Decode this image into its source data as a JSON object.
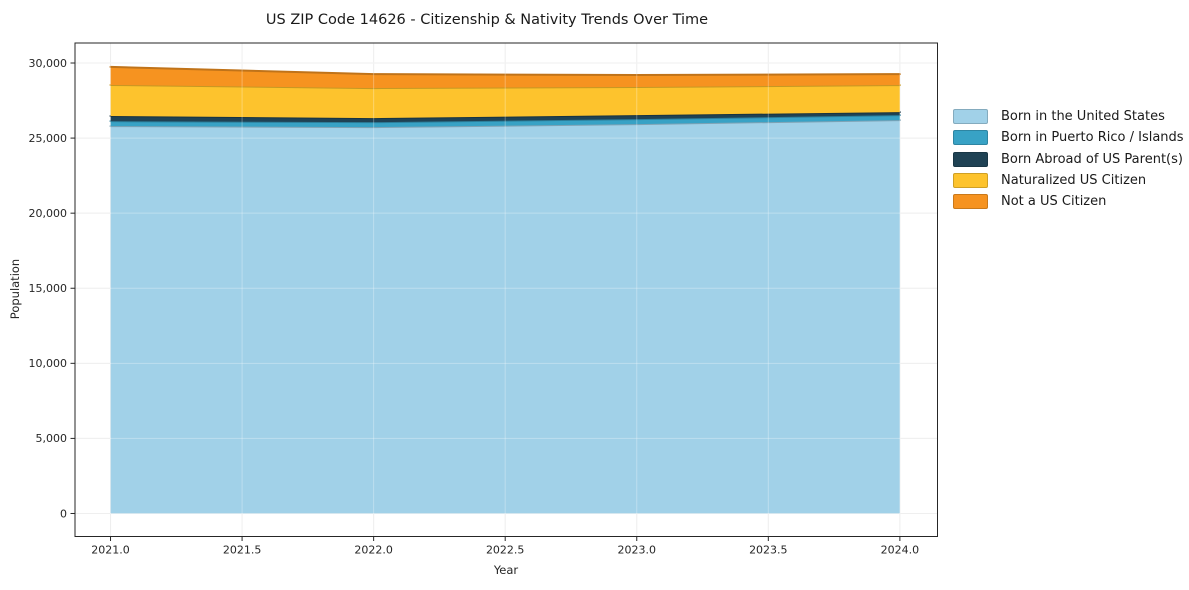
{
  "title": "US ZIP Code 14626 - Citizenship & Nativity Trends Over Time",
  "chart_data": {
    "type": "area",
    "stacked": true,
    "x": [
      2021,
      2022,
      2023,
      2024
    ],
    "series": [
      {
        "name": "Born in the United States",
        "color": "#a1d1e8",
        "values": [
          25800,
          25730,
          25930,
          26200
        ]
      },
      {
        "name": "Born in Puerto Rico / Islands",
        "color": "#38a2c5",
        "values": [
          330,
          330,
          330,
          330
        ]
      },
      {
        "name": "Born Abroad of US Parent(s)",
        "color": "#1f4254",
        "values": [
          340,
          270,
          270,
          200
        ]
      },
      {
        "name": "Naturalized US Citizen",
        "color": "#fdc32d",
        "values": [
          2070,
          2000,
          1870,
          1800
        ]
      },
      {
        "name": "Not a US Citizen",
        "color": "#f69320",
        "values": [
          1200,
          930,
          800,
          730
        ]
      }
    ],
    "totals": [
      29740,
      29260,
      29200,
      29260
    ],
    "xlabel": "Year",
    "ylabel": "Population",
    "xlim": [
      2020.865,
      2024.143
    ],
    "ylim": [
      -1533,
      31333
    ],
    "xticks": [
      2021.0,
      2021.5,
      2022.0,
      2022.5,
      2023.0,
      2023.5,
      2024.0
    ],
    "yticks": [
      0,
      5000,
      10000,
      15000,
      20000,
      25000,
      30000
    ],
    "grid": true,
    "legend_position": "right-outside"
  },
  "colors": {
    "spine": "#262626",
    "tick_text": "#262626",
    "grid": "#e8e8e8",
    "grid_overlay": "rgba(255,255,255,0.3)",
    "background": "#ffffff",
    "title_text": "#1a1a1a"
  }
}
